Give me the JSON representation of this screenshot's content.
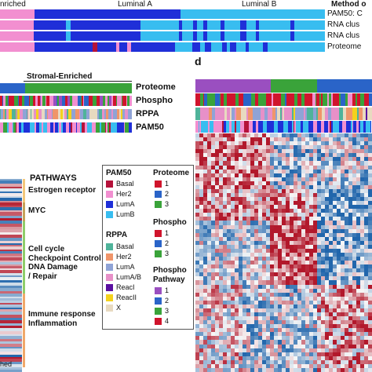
{
  "panel_c_top": {
    "group_labels": [
      "nriched",
      "Luminal A",
      "Luminal B"
    ],
    "method_header": "Method o",
    "tracks": [
      {
        "label": "PAM50: C"
      },
      {
        "label": "RNA clus"
      },
      {
        "label": "RNA clus"
      },
      {
        "label": "Proteome"
      }
    ]
  },
  "panel_left_mid": {
    "group_label": "Stromal-Enriched",
    "tracks": [
      {
        "label": "Proteome"
      },
      {
        "label": "Phospho"
      },
      {
        "label": "RPPA"
      },
      {
        "label": "PAM50"
      }
    ]
  },
  "panel_d": {
    "letter": "d"
  },
  "pathways": {
    "title": "PATHWAYS",
    "items": [
      {
        "label": "Estrogen receptor"
      },
      {
        "label": "MYC"
      },
      {
        "label": "Cell cycle\nCheckpoint Control\nDNA Damage\n/ Repair"
      },
      {
        "label": "Immune response\nInflammation"
      }
    ],
    "bottom_label": "hed"
  },
  "legend": {
    "pam50": {
      "title": "PAM50",
      "items": [
        {
          "label": "Basal",
          "color": "#b5123a"
        },
        {
          "label": "Her2",
          "color": "#f28fd0"
        },
        {
          "label": "LumA",
          "color": "#1f2fd8"
        },
        {
          "label": "LumB",
          "color": "#38bdf0"
        }
      ]
    },
    "proteome": {
      "title": "Proteome",
      "items": [
        {
          "label": "1",
          "color": "#d0142c"
        },
        {
          "label": "2",
          "color": "#2a64c8"
        },
        {
          "label": "3",
          "color": "#3aa33a"
        }
      ]
    },
    "phospho": {
      "title": "Phospho",
      "items": [
        {
          "label": "1",
          "color": "#d0142c"
        },
        {
          "label": "2",
          "color": "#2a64c8"
        },
        {
          "label": "3",
          "color": "#3aa33a"
        }
      ]
    },
    "rppa": {
      "title": "RPPA",
      "items": [
        {
          "label": "Basal",
          "color": "#4fb39a"
        },
        {
          "label": "Her2",
          "color": "#f0956a"
        },
        {
          "label": "LumA",
          "color": "#8fa3d6"
        },
        {
          "label": "LumA/B",
          "color": "#e790c8"
        },
        {
          "label": "ReacI",
          "color": "#5a0fa0"
        },
        {
          "label": "ReacII",
          "color": "#f4d21c"
        },
        {
          "label": "X",
          "color": "#e8dac0"
        }
      ]
    },
    "phospho_pathway": {
      "title": "Phospho\nPathway",
      "items": [
        {
          "label": "1",
          "color": "#9a4fc0"
        },
        {
          "label": "2",
          "color": "#2a64c8"
        },
        {
          "label": "3",
          "color": "#3aa33a"
        },
        {
          "label": "4",
          "color": "#d0142c"
        }
      ]
    }
  }
}
